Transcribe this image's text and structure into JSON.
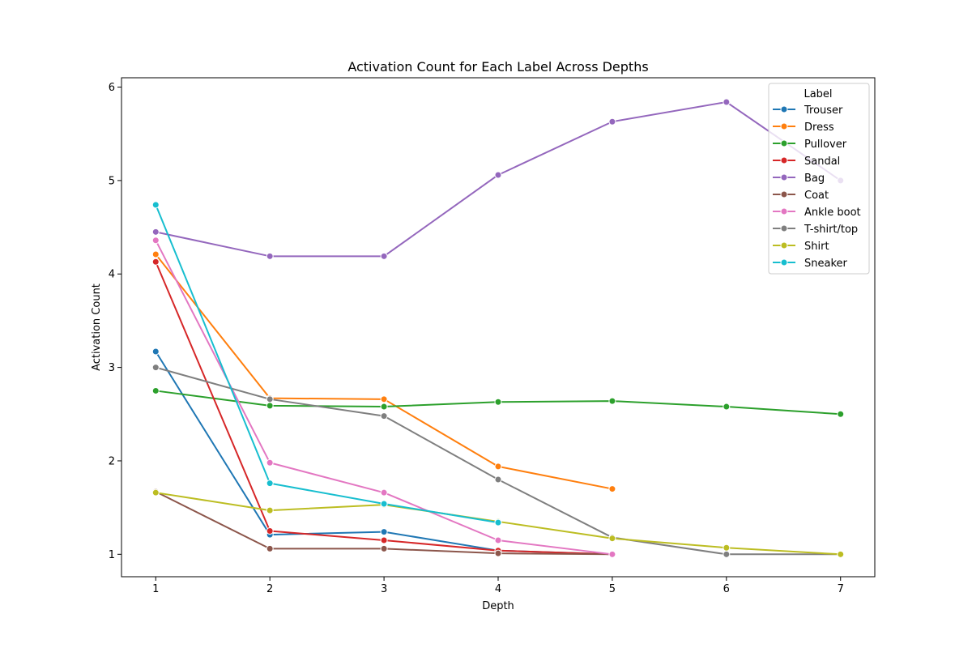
{
  "chart_data": {
    "type": "line",
    "title": "Activation Count for Each Label Across Depths",
    "xlabel": "Depth",
    "ylabel": "Activation Count",
    "xlim": [
      0.7,
      7.3
    ],
    "ylim": [
      0.76,
      6.1
    ],
    "xticks": [
      1,
      2,
      3,
      4,
      5,
      6,
      7
    ],
    "yticks": [
      1,
      2,
      3,
      4,
      5,
      6
    ],
    "grid": false,
    "legend_title": "Label",
    "legend_position": "top-right",
    "series": [
      {
        "name": "Trouser",
        "color": "#1f77b4",
        "x": [
          1,
          2,
          3,
          4,
          5
        ],
        "y": [
          3.17,
          1.21,
          1.24,
          1.04,
          1.0
        ]
      },
      {
        "name": "Dress",
        "color": "#ff7f0e",
        "x": [
          1,
          2,
          3,
          4,
          5
        ],
        "y": [
          4.21,
          2.67,
          2.66,
          1.94,
          1.7
        ]
      },
      {
        "name": "Pullover",
        "color": "#2ca02c",
        "x": [
          1,
          2,
          3,
          4,
          5,
          6,
          7
        ],
        "y": [
          2.75,
          2.59,
          2.58,
          2.63,
          2.64,
          2.58,
          2.5
        ]
      },
      {
        "name": "Sandal",
        "color": "#d62728",
        "x": [
          1,
          2,
          3,
          4,
          5
        ],
        "y": [
          4.13,
          1.25,
          1.15,
          1.04,
          1.0
        ]
      },
      {
        "name": "Bag",
        "color": "#9467bd",
        "x": [
          1,
          2,
          3,
          4,
          5,
          6,
          7
        ],
        "y": [
          4.45,
          4.19,
          4.19,
          5.06,
          5.63,
          5.84,
          5.0
        ]
      },
      {
        "name": "Coat",
        "color": "#8c564b",
        "x": [
          1,
          2,
          3,
          4,
          5
        ],
        "y": [
          1.67,
          1.06,
          1.06,
          1.01,
          1.0
        ]
      },
      {
        "name": "Ankle boot",
        "color": "#e377c2",
        "x": [
          1,
          2,
          3,
          4,
          5
        ],
        "y": [
          4.36,
          1.98,
          1.66,
          1.15,
          1.0
        ]
      },
      {
        "name": "T-shirt/top",
        "color": "#7f7f7f",
        "x": [
          1,
          2,
          3,
          4,
          5,
          6,
          7
        ],
        "y": [
          3.0,
          2.66,
          2.48,
          1.8,
          1.18,
          1.0,
          1.0
        ]
      },
      {
        "name": "Shirt",
        "color": "#bcbd22",
        "x": [
          1,
          2,
          3,
          4,
          5,
          6,
          7
        ],
        "y": [
          1.66,
          1.47,
          1.53,
          1.35,
          1.17,
          1.07,
          1.0
        ]
      },
      {
        "name": "Sneaker",
        "color": "#17becf",
        "x": [
          1,
          2,
          3,
          4
        ],
        "y": [
          4.74,
          1.76,
          1.54,
          1.34
        ]
      }
    ]
  }
}
